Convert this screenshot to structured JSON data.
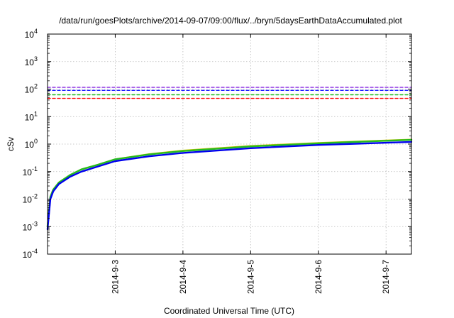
{
  "chart_data": {
    "type": "line",
    "title": "/data/run/goesPlots/archive/2014-09-07/09:00/flux/../bryn/5daysEarthDataAccumulated.plot",
    "xlabel": "Coordinated Universal Time (UTC)",
    "ylabel": "cSv",
    "y_scale": "log",
    "ylim": [
      0.0001,
      10000
    ],
    "xlim": [
      "2014-09-02 00:00",
      "2014-09-07 09:00"
    ],
    "grid": true,
    "x_ticks": [
      "2014-9-3",
      "2014-9-4",
      "2014-9-5",
      "2014-9-6",
      "2014-9-7"
    ],
    "y_ticks": [
      {
        "base": "10",
        "exp": "4",
        "value": 10000
      },
      {
        "base": "10",
        "exp": "3",
        "value": 1000
      },
      {
        "base": "10",
        "exp": "2",
        "value": 100
      },
      {
        "base": "10",
        "exp": "1",
        "value": 10
      },
      {
        "base": "10",
        "exp": "0",
        "value": 1
      },
      {
        "base": "10",
        "exp": "-1",
        "value": 0.1
      },
      {
        "base": "10",
        "exp": "-2",
        "value": 0.01
      },
      {
        "base": "10",
        "exp": "-3",
        "value": 0.001
      },
      {
        "base": "10",
        "exp": "-4",
        "value": 0.0001
      }
    ],
    "series": [
      {
        "style": "dashed",
        "color": "#8a2be2",
        "values": [
          [
            "2014-09-02 00:00",
            115
          ],
          [
            "2014-09-07 09:00",
            115
          ]
        ]
      },
      {
        "style": "dashed",
        "color": "#2020ff",
        "values": [
          [
            "2014-09-02 00:00",
            90
          ],
          [
            "2014-09-07 09:00",
            90
          ]
        ]
      },
      {
        "style": "dashed",
        "color": "#22bb22",
        "values": [
          [
            "2014-09-02 00:00",
            62
          ],
          [
            "2014-09-07 09:00",
            62
          ]
        ]
      },
      {
        "style": "dashed",
        "color": "#ff0000",
        "values": [
          [
            "2014-09-02 00:00",
            46
          ],
          [
            "2014-09-07 09:00",
            46
          ]
        ]
      },
      {
        "style": "solid",
        "color": "#d4c400",
        "values": [
          [
            "2014-09-02 00:00",
            0.001
          ],
          [
            "2014-09-02 01:00",
            0.012
          ],
          [
            "2014-09-02 02:00",
            0.022
          ],
          [
            "2014-09-02 04:00",
            0.04
          ],
          [
            "2014-09-02 08:00",
            0.075
          ],
          [
            "2014-09-02 12:00",
            0.12
          ],
          [
            "2014-09-02 18:00",
            0.18
          ],
          [
            "2014-09-03 00:00",
            0.28
          ],
          [
            "2014-09-03 12:00",
            0.43
          ],
          [
            "2014-09-04 00:00",
            0.58
          ],
          [
            "2014-09-05 00:00",
            0.85
          ],
          [
            "2014-09-06 00:00",
            1.1
          ],
          [
            "2014-09-07 00:00",
            1.35
          ],
          [
            "2014-09-07 09:00",
            1.45
          ]
        ]
      },
      {
        "style": "solid",
        "color": "#22bb22",
        "values": [
          [
            "2014-09-02 00:00",
            0.001
          ],
          [
            "2014-09-02 01:00",
            0.012
          ],
          [
            "2014-09-02 02:00",
            0.022
          ],
          [
            "2014-09-02 04:00",
            0.04
          ],
          [
            "2014-09-02 08:00",
            0.075
          ],
          [
            "2014-09-02 12:00",
            0.12
          ],
          [
            "2014-09-02 18:00",
            0.18
          ],
          [
            "2014-09-03 00:00",
            0.28
          ],
          [
            "2014-09-03 12:00",
            0.42
          ],
          [
            "2014-09-04 00:00",
            0.56
          ],
          [
            "2014-09-05 00:00",
            0.82
          ],
          [
            "2014-09-06 00:00",
            1.07
          ],
          [
            "2014-09-07 00:00",
            1.32
          ],
          [
            "2014-09-07 09:00",
            1.42
          ]
        ]
      },
      {
        "style": "solid",
        "color": "#0000ee",
        "values": [
          [
            "2014-09-02 00:00",
            0.0008
          ],
          [
            "2014-09-02 01:00",
            0.01
          ],
          [
            "2014-09-02 02:00",
            0.019
          ],
          [
            "2014-09-02 04:00",
            0.035
          ],
          [
            "2014-09-02 08:00",
            0.065
          ],
          [
            "2014-09-02 12:00",
            0.1
          ],
          [
            "2014-09-02 18:00",
            0.155
          ],
          [
            "2014-09-03 00:00",
            0.24
          ],
          [
            "2014-09-03 12:00",
            0.36
          ],
          [
            "2014-09-04 00:00",
            0.48
          ],
          [
            "2014-09-05 00:00",
            0.71
          ],
          [
            "2014-09-06 00:00",
            0.93
          ],
          [
            "2014-09-07 00:00",
            1.12
          ],
          [
            "2014-09-07 09:00",
            1.2
          ]
        ]
      }
    ]
  }
}
